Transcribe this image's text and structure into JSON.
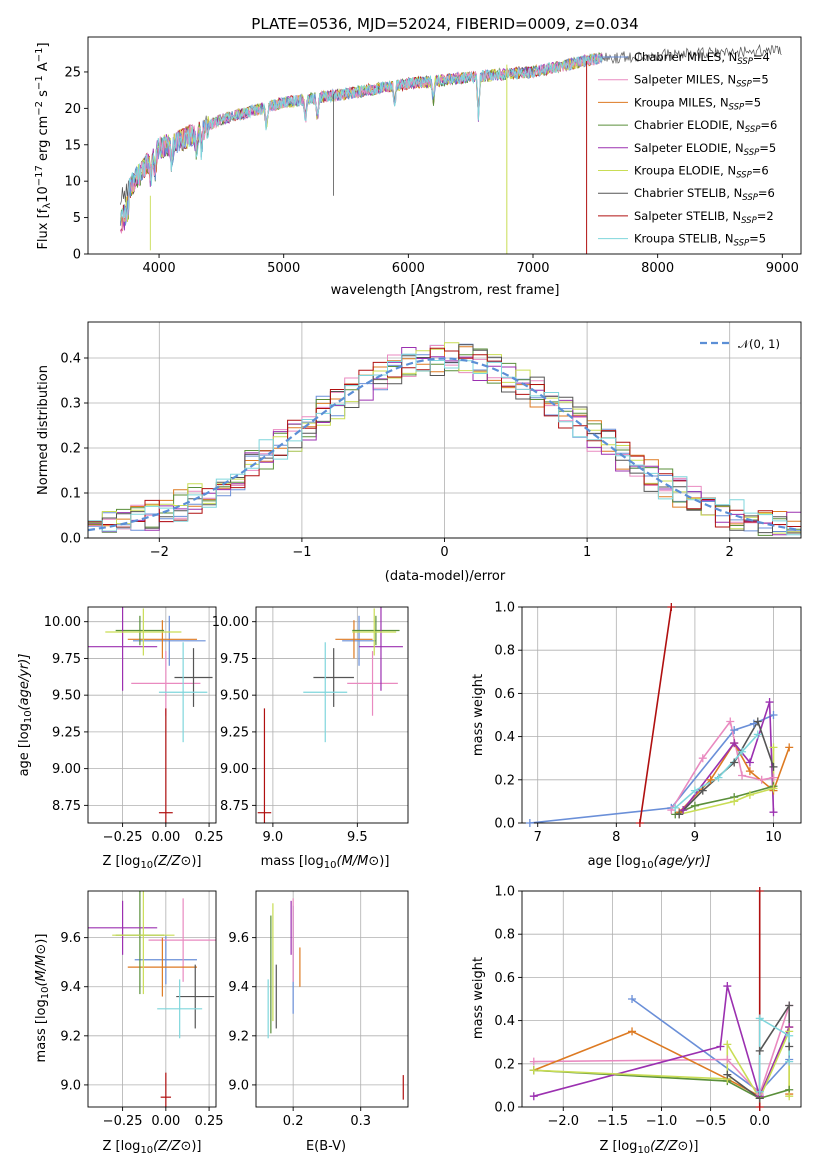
{
  "colors": {
    "chabrier_miles": "#6a8fd8",
    "salpeter_miles": "#e98ac0",
    "kroupa_miles": "#dd7a22",
    "chabrier_elodie": "#5a8f3a",
    "salpeter_elodie": "#9b30b0",
    "kroupa_elodie": "#c9dd55",
    "chabrier_stelib": "#555555",
    "salpeter_stelib": "#b01010",
    "kroupa_stelib": "#7fd6dc",
    "normal_curve": "#5b8fd6"
  },
  "chart_data": [
    {
      "id": "spectrum",
      "type": "line",
      "title": "PLATE=0536, MJD=52024, FIBERID=0009, z=0.034",
      "xlabel": "wavelength [Angstrom, rest frame]",
      "ylabel_text": "Flux [f",
      "ylabel_sub": "λ",
      "ylabel_rest": "10",
      "ylabel_exp1": "−17",
      "ylabel_mid": " erg cm",
      "ylabel_exp2": "−2",
      "ylabel_s": " s",
      "ylabel_exp3": "−1",
      "ylabel_a": " A",
      "ylabel_exp4": "−1",
      "ylabel_end": "]",
      "xlim": [
        3430,
        9150
      ],
      "ylim": [
        0,
        29.8
      ],
      "xticks": [
        4000,
        5000,
        6000,
        7000,
        8000,
        9000
      ],
      "yticks": [
        0,
        5,
        10,
        15,
        20,
        25
      ],
      "grid": false,
      "legend_position": "top-right",
      "continuum_x": [
        3700,
        3800,
        4000,
        4200,
        4500,
        5000,
        5500,
        6000,
        6500,
        7000,
        7500,
        8000,
        8500,
        9000
      ],
      "continuum_y": [
        7.5,
        10,
        14.5,
        15.8,
        18.5,
        20.8,
        22.0,
        23.4,
        24.3,
        25.0,
        26.8,
        27.3,
        27.6,
        28.1
      ],
      "legend": [
        {
          "key": "chabrier_miles",
          "label": "Chabrier MILES, N",
          "sub": "SSP",
          "val": "=4"
        },
        {
          "key": "salpeter_miles",
          "label": "Salpeter MILES, N",
          "sub": "SSP",
          "val": "=5"
        },
        {
          "key": "kroupa_miles",
          "label": "Kroupa MILES, N",
          "sub": "SSP",
          "val": "=5"
        },
        {
          "key": "chabrier_elodie",
          "label": "Chabrier ELODIE, N",
          "sub": "SSP",
          "val": "=6"
        },
        {
          "key": "salpeter_elodie",
          "label": "Salpeter ELODIE, N",
          "sub": "SSP",
          "val": "=5"
        },
        {
          "key": "kroupa_elodie",
          "label": "Kroupa ELODIE, N",
          "sub": "SSP",
          "val": "=6"
        },
        {
          "key": "chabrier_stelib",
          "label": "Chabrier STELIB, N",
          "sub": "SSP",
          "val": "=6"
        },
        {
          "key": "salpeter_stelib",
          "label": "Salpeter STELIB, N",
          "sub": "SSP",
          "val": "=2"
        },
        {
          "key": "kroupa_stelib",
          "label": "Kroupa STELIB, N",
          "sub": "SSP",
          "val": "=5"
        }
      ]
    },
    {
      "id": "residuals",
      "type": "histogram",
      "xlabel": "(data-model)/error",
      "ylabel": "Normed distribution",
      "xlim": [
        -2.5,
        2.5
      ],
      "ylim": [
        0,
        0.48
      ],
      "xticks": [
        -2,
        -1,
        0,
        1,
        2
      ],
      "yticks": [
        0.0,
        0.1,
        0.2,
        0.3,
        0.4
      ],
      "grid": true,
      "legend_position": "top-right",
      "legend_label": "𝒩(0, 1)",
      "bin_width": 0.1
    },
    {
      "id": "age_vs_z",
      "type": "errorbar",
      "xlabel": "Z [log",
      "xlabel_sub": "10",
      "xlabel_rest": "(Z/Z",
      "xlabel_end": "⊙)]",
      "ylabel": "age  [log",
      "ylabel_sub": "10",
      "ylabel_rest": "(age/yr)]",
      "xlim": [
        -0.45,
        0.29
      ],
      "ylim": [
        8.63,
        10.1
      ],
      "xticks": [
        -0.25,
        0.0,
        0.25
      ],
      "yticks": [
        8.75,
        9.0,
        9.25,
        9.5,
        9.75,
        10.0
      ],
      "grid": true,
      "points": [
        {
          "key": "chabrier_miles",
          "x": 0.02,
          "y": 9.87,
          "xerr": 0.21,
          "yerr": 0.17
        },
        {
          "key": "salpeter_miles",
          "x": 0.0,
          "y": 9.58,
          "xerr": 0.2,
          "yerr": 0.22
        },
        {
          "key": "kroupa_miles",
          "x": -0.02,
          "y": 9.88,
          "xerr": 0.2,
          "yerr": 0.13
        },
        {
          "key": "chabrier_elodie",
          "x": -0.15,
          "y": 9.94,
          "xerr": 0.14,
          "yerr": 0.1
        },
        {
          "key": "salpeter_elodie",
          "x": -0.25,
          "y": 9.83,
          "xerr": 0.2,
          "yerr": 0.3
        },
        {
          "key": "kroupa_elodie",
          "x": -0.13,
          "y": 9.93,
          "xerr": 0.22,
          "yerr": 0.16
        },
        {
          "key": "chabrier_stelib",
          "x": 0.16,
          "y": 9.62,
          "xerr": 0.11,
          "yerr": 0.2
        },
        {
          "key": "salpeter_stelib",
          "x": 0.0,
          "y": 8.7,
          "xerr": 0.04,
          "yerr": 0.71
        },
        {
          "key": "kroupa_stelib",
          "x": 0.1,
          "y": 9.52,
          "xerr": 0.14,
          "yerr": 0.34
        }
      ]
    },
    {
      "id": "age_vs_mass",
      "type": "errorbar",
      "xlabel": "mass [log",
      "xlabel_sub": "10",
      "xlabel_rest": "(M/M",
      "xlabel_end": "⊙)]",
      "xlim": [
        8.9,
        9.8
      ],
      "ylim": [
        8.63,
        10.1
      ],
      "xticks": [
        9.0,
        9.5
      ],
      "yticks": [
        8.75,
        9.0,
        9.25,
        9.5,
        9.75,
        10.0
      ],
      "grid": true,
      "points": [
        {
          "key": "chabrier_miles",
          "x": 9.51,
          "y": 9.87,
          "xerr": 0.1,
          "yerr": 0.17
        },
        {
          "key": "salpeter_miles",
          "x": 9.59,
          "y": 9.58,
          "xerr": 0.15,
          "yerr": 0.22
        },
        {
          "key": "kroupa_miles",
          "x": 9.48,
          "y": 9.88,
          "xerr": 0.11,
          "yerr": 0.13
        },
        {
          "key": "chabrier_elodie",
          "x": 9.61,
          "y": 9.94,
          "xerr": 0.14,
          "yerr": 0.1
        },
        {
          "key": "salpeter_elodie",
          "x": 9.64,
          "y": 9.83,
          "xerr": 0.13,
          "yerr": 0.3
        },
        {
          "key": "kroupa_elodie",
          "x": 9.6,
          "y": 9.93,
          "xerr": 0.13,
          "yerr": 0.16
        },
        {
          "key": "chabrier_stelib",
          "x": 9.36,
          "y": 9.62,
          "xerr": 0.12,
          "yerr": 0.2
        },
        {
          "key": "salpeter_stelib",
          "x": 8.95,
          "y": 8.7,
          "xerr": 0.04,
          "yerr": 0.71
        },
        {
          "key": "kroupa_stelib",
          "x": 9.31,
          "y": 9.52,
          "xerr": 0.13,
          "yerr": 0.34
        }
      ]
    },
    {
      "id": "weight_vs_age",
      "type": "line",
      "xlabel": "age  [log",
      "xlabel_sub": "10",
      "xlabel_rest": "(age/yr)]",
      "ylabel": "mass weight",
      "xlim": [
        6.8,
        10.35
      ],
      "ylim": [
        0,
        1.0
      ],
      "xticks": [
        7,
        8,
        9,
        10
      ],
      "yticks": [
        0.0,
        0.2,
        0.4,
        0.6,
        0.8,
        1.0
      ],
      "grid": true,
      "series": [
        {
          "key": "chabrier_miles",
          "x": [
            6.9,
            8.7,
            9.5,
            9.75,
            10.0
          ],
          "y": [
            0.0,
            0.07,
            0.43,
            0.46,
            0.5
          ]
        },
        {
          "key": "salpeter_miles",
          "x": [
            8.7,
            9.1,
            9.45,
            9.6,
            9.85,
            10.0
          ],
          "y": [
            0.06,
            0.3,
            0.47,
            0.22,
            0.2,
            0.21
          ]
        },
        {
          "key": "kroupa_miles",
          "x": [
            8.8,
            9.2,
            9.5,
            9.7,
            10.0,
            10.2
          ],
          "y": [
            0.05,
            0.2,
            0.37,
            0.24,
            0.15,
            0.35
          ]
        },
        {
          "key": "chabrier_elodie",
          "x": [
            8.75,
            9.0,
            9.5,
            10.0
          ],
          "y": [
            0.04,
            0.08,
            0.12,
            0.17
          ]
        },
        {
          "key": "salpeter_elodie",
          "x": [
            8.85,
            9.5,
            9.7,
            9.95,
            10.0
          ],
          "y": [
            0.06,
            0.37,
            0.28,
            0.56,
            0.05
          ]
        },
        {
          "key": "kroupa_elodie",
          "x": [
            8.8,
            9.5,
            9.7,
            10.0,
            10.0
          ],
          "y": [
            0.04,
            0.1,
            0.13,
            0.16,
            0.35
          ]
        },
        {
          "key": "chabrier_stelib",
          "x": [
            8.8,
            9.1,
            9.5,
            9.8,
            10.0
          ],
          "y": [
            0.04,
            0.15,
            0.28,
            0.47,
            0.26
          ]
        },
        {
          "key": "salpeter_stelib",
          "x": [
            8.3,
            8.7
          ],
          "y": [
            0.0,
            1.0
          ]
        },
        {
          "key": "kroupa_stelib",
          "x": [
            8.75,
            9.0,
            9.3,
            9.6,
            9.8
          ],
          "y": [
            0.07,
            0.15,
            0.21,
            0.33,
            0.41
          ]
        }
      ]
    },
    {
      "id": "mass_vs_z",
      "type": "errorbar",
      "xlabel": "Z [log",
      "xlabel_sub": "10",
      "xlabel_rest": "(Z/Z",
      "xlabel_end": "⊙)]",
      "ylabel": "mass [log",
      "ylabel_sub": "10",
      "ylabel_rest": "(M/M",
      "ylabel_end": "⊙)]",
      "xlim": [
        -0.45,
        0.29
      ],
      "ylim": [
        8.91,
        9.79
      ],
      "xticks": [
        -0.25,
        0.0,
        0.25
      ],
      "yticks": [
        9.0,
        9.2,
        9.4,
        9.6
      ],
      "grid": true,
      "points": [
        {
          "key": "chabrier_miles",
          "x": 0.0,
          "y": 9.51,
          "xerr": 0.18,
          "yerr": 0.1
        },
        {
          "key": "salpeter_miles",
          "x": 0.1,
          "y": 9.59,
          "xerr": 0.2,
          "yerr": 0.17
        },
        {
          "key": "kroupa_miles",
          "x": -0.02,
          "y": 9.48,
          "xerr": 0.2,
          "yerr": 0.12
        },
        {
          "key": "chabrier_elodie",
          "x": -0.15,
          "y": 9.61,
          "xerr": 0.14,
          "yerr": 0.24
        },
        {
          "key": "salpeter_elodie",
          "x": -0.25,
          "y": 9.64,
          "xerr": 0.2,
          "yerr": 0.11
        },
        {
          "key": "kroupa_elodie",
          "x": -0.13,
          "y": 9.61,
          "xerr": 0.18,
          "yerr": 0.24
        },
        {
          "key": "chabrier_stelib",
          "x": 0.17,
          "y": 9.36,
          "xerr": 0.11,
          "yerr": 0.13
        },
        {
          "key": "salpeter_stelib",
          "x": 0.0,
          "y": 8.95,
          "xerr": 0.03,
          "yerr": 0.1
        },
        {
          "key": "kroupa_stelib",
          "x": 0.08,
          "y": 9.31,
          "xerr": 0.13,
          "yerr": 0.12
        }
      ]
    },
    {
      "id": "mass_vs_ebv",
      "type": "errorbar",
      "xlabel": "E(B-V)",
      "xlim": [
        0.145,
        0.37
      ],
      "ylim": [
        8.91,
        9.79
      ],
      "xticks": [
        0.2,
        0.3
      ],
      "yticks": [
        9.0,
        9.2,
        9.4,
        9.6
      ],
      "grid": true,
      "points": [
        {
          "key": "chabrier_miles",
          "x": 0.2,
          "y": 9.51,
          "xerr": 0.0,
          "yerr": 0.22
        },
        {
          "key": "salpeter_miles",
          "x": 0.2,
          "y": 9.59,
          "xerr": 0.0,
          "yerr": 0.17
        },
        {
          "key": "kroupa_miles",
          "x": 0.21,
          "y": 9.48,
          "xerr": 0.0,
          "yerr": 0.08
        },
        {
          "key": "chabrier_elodie",
          "x": 0.167,
          "y": 9.45,
          "xerr": 0.0,
          "yerr": 0.24
        },
        {
          "key": "salpeter_elodie",
          "x": 0.197,
          "y": 9.64,
          "xerr": 0.0,
          "yerr": 0.11
        },
        {
          "key": "kroupa_elodie",
          "x": 0.17,
          "y": 9.5,
          "xerr": 0.0,
          "yerr": 0.24
        },
        {
          "key": "chabrier_stelib",
          "x": 0.175,
          "y": 9.36,
          "xerr": 0.0,
          "yerr": 0.13
        },
        {
          "key": "salpeter_stelib",
          "x": 0.363,
          "y": 8.99,
          "xerr": 0.0,
          "yerr": 0.05
        },
        {
          "key": "kroupa_stelib",
          "x": 0.163,
          "y": 9.31,
          "xerr": 0.0,
          "yerr": 0.12
        }
      ]
    },
    {
      "id": "weight_vs_z",
      "type": "line",
      "xlabel": "Z [log",
      "xlabel_sub": "10",
      "xlabel_rest": "(Z/Z",
      "xlabel_end": "⊙)]",
      "ylabel": "mass weight",
      "xlim": [
        -2.42,
        0.42
      ],
      "ylim": [
        0,
        1.0
      ],
      "xticks": [
        -2.0,
        -1.5,
        -1.0,
        -0.5,
        0.0
      ],
      "yticks": [
        0.0,
        0.2,
        0.4,
        0.6,
        0.8,
        1.0
      ],
      "grid": true,
      "series": [
        {
          "key": "chabrier_miles",
          "x": [
            -1.3,
            0.0,
            0.3
          ],
          "y": [
            0.5,
            0.07,
            0.22
          ]
        },
        {
          "key": "salpeter_miles",
          "x": [
            -2.3,
            -0.33,
            0.0,
            0.3
          ],
          "y": [
            0.21,
            0.22,
            0.06,
            0.47
          ]
        },
        {
          "key": "kroupa_miles",
          "x": [
            -2.3,
            -1.3,
            -0.33,
            0.0,
            0.3,
            0.3
          ],
          "y": [
            0.17,
            0.35,
            0.13,
            0.05,
            0.37,
            0.06
          ]
        },
        {
          "key": "chabrier_elodie",
          "x": [
            -2.3,
            -0.33,
            0.0,
            0.3
          ],
          "y": [
            0.17,
            0.12,
            0.04,
            0.08
          ]
        },
        {
          "key": "salpeter_elodie",
          "x": [
            -2.3,
            -0.4,
            -0.33,
            0.0,
            0.3
          ],
          "y": [
            0.05,
            0.28,
            0.56,
            0.05,
            0.37
          ]
        },
        {
          "key": "kroupa_elodie",
          "x": [
            -2.3,
            -0.33,
            -0.33,
            0.0,
            0.3,
            0.3
          ],
          "y": [
            0.17,
            0.13,
            0.29,
            0.04,
            0.35,
            0.05
          ]
        },
        {
          "key": "chabrier_stelib",
          "x": [
            -0.33,
            0.0,
            0.0,
            0.3,
            0.3
          ],
          "y": [
            0.15,
            0.04,
            0.26,
            0.47,
            0.28
          ]
        },
        {
          "key": "salpeter_stelib",
          "x": [
            0.0,
            0.0
          ],
          "y": [
            0.0,
            1.0
          ]
        },
        {
          "key": "kroupa_stelib",
          "x": [
            0.0,
            0.0,
            0.3,
            0.3
          ],
          "y": [
            0.07,
            0.41,
            0.33,
            0.21
          ]
        }
      ]
    }
  ]
}
